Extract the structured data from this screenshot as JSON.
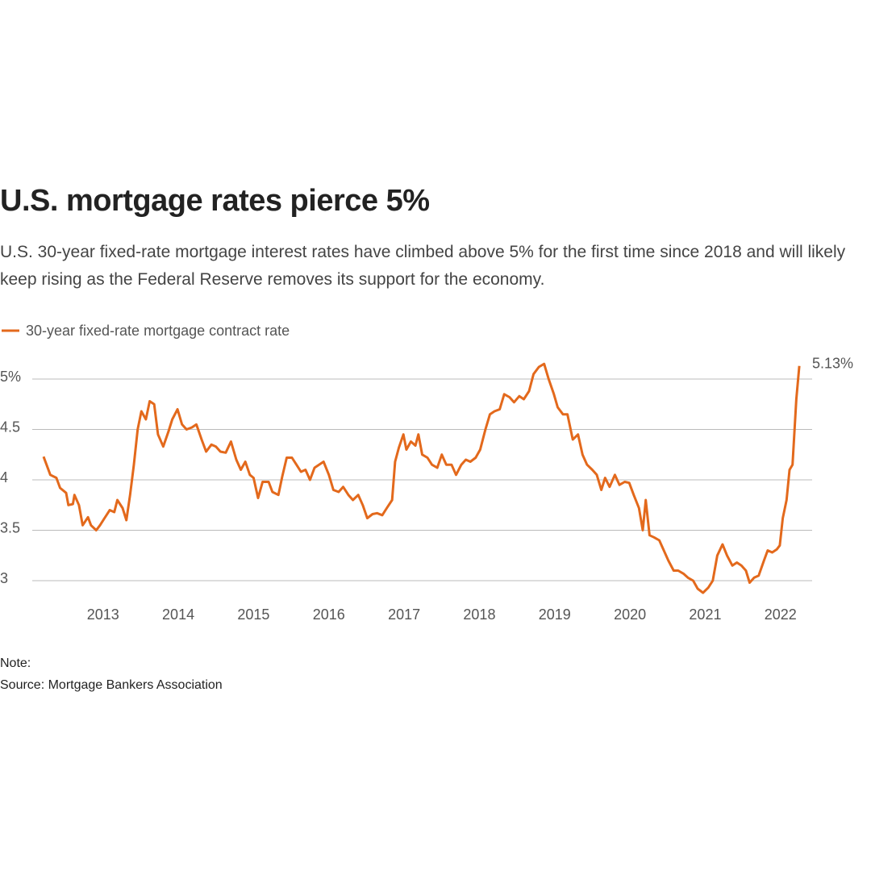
{
  "chart_data": {
    "type": "line",
    "title": "U.S. mortgage rates pierce 5%",
    "subtitle": "U.S. 30-year fixed-rate mortgage interest rates have climbed above 5% for the first time since 2018 and will likely keep rising as the Federal Reserve removes its support for the economy.",
    "note": "Note:",
    "source": "Source: Mortgage Bankers Association",
    "x": [
      2012.21,
      2012.3,
      2012.38,
      2012.43,
      2012.51,
      2012.54,
      2012.6,
      2012.62,
      2012.68,
      2012.73,
      2012.8,
      2012.84,
      2012.91,
      2012.96,
      2013.02,
      2013.09,
      2013.15,
      2013.19,
      2013.26,
      2013.31,
      2013.36,
      2013.41,
      2013.46,
      2013.51,
      2013.57,
      2013.62,
      2013.68,
      2013.73,
      2013.8,
      2013.87,
      2013.92,
      2013.99,
      2014.05,
      2014.11,
      2014.18,
      2014.24,
      2014.31,
      2014.37,
      2014.44,
      2014.5,
      2014.56,
      2014.63,
      2014.7,
      2014.77,
      2014.83,
      2014.89,
      2014.95,
      2015.0,
      2015.06,
      2015.12,
      2015.2,
      2015.25,
      2015.33,
      2015.38,
      2015.44,
      2015.51,
      2015.57,
      2015.63,
      2015.69,
      2015.75,
      2015.81,
      2015.87,
      2015.93,
      2016.0,
      2016.06,
      2016.13,
      2016.19,
      2016.26,
      2016.32,
      2016.39,
      2016.45,
      2016.51,
      2016.58,
      2016.64,
      2016.71,
      2016.77,
      2016.84,
      2016.88,
      2016.93,
      2016.99,
      2017.03,
      2017.09,
      2017.15,
      2017.19,
      2017.24,
      2017.31,
      2017.37,
      2017.44,
      2017.5,
      2017.56,
      2017.63,
      2017.69,
      2017.76,
      2017.82,
      2017.88,
      2017.95,
      2018.01,
      2018.08,
      2018.14,
      2018.2,
      2018.27,
      2018.33,
      2018.4,
      2018.46,
      2018.53,
      2018.59,
      2018.66,
      2018.72,
      2018.79,
      2018.86,
      2018.92,
      2018.99,
      2019.04,
      2019.11,
      2019.17,
      2019.24,
      2019.31,
      2019.37,
      2019.43,
      2019.5,
      2019.56,
      2019.62,
      2019.67,
      2019.73,
      2019.8,
      2019.86,
      2019.93,
      2019.99,
      2020.05,
      2020.12,
      2020.17,
      2020.21,
      2020.26,
      2020.32,
      2020.39,
      2020.45,
      2020.51,
      2020.58,
      2020.64,
      2020.71,
      2020.77,
      2020.84,
      2020.9,
      2020.97,
      2021.04,
      2021.1,
      2021.16,
      2021.23,
      2021.29,
      2021.36,
      2021.42,
      2021.48,
      2021.54,
      2021.59,
      2021.65,
      2021.71,
      2021.78,
      2021.83,
      2021.89,
      2021.95,
      2021.99,
      2022.03,
      2022.08,
      2022.12,
      2022.16,
      2022.21,
      2022.25
    ],
    "series": [
      {
        "name": "30-year fixed-rate mortgage contract rate",
        "color": "#e3691c",
        "values": [
          4.23,
          4.05,
          4.02,
          3.92,
          3.87,
          3.75,
          3.76,
          3.85,
          3.75,
          3.55,
          3.63,
          3.55,
          3.5,
          3.55,
          3.62,
          3.7,
          3.68,
          3.8,
          3.72,
          3.6,
          3.85,
          4.15,
          4.5,
          4.68,
          4.6,
          4.78,
          4.75,
          4.45,
          4.33,
          4.48,
          4.6,
          4.7,
          4.55,
          4.5,
          4.52,
          4.55,
          4.4,
          4.28,
          4.35,
          4.33,
          4.28,
          4.27,
          4.38,
          4.2,
          4.1,
          4.18,
          4.05,
          4.02,
          3.82,
          3.98,
          3.98,
          3.88,
          3.85,
          4.03,
          4.22,
          4.22,
          4.15,
          4.08,
          4.1,
          4.0,
          4.12,
          4.15,
          4.18,
          4.05,
          3.9,
          3.88,
          3.93,
          3.85,
          3.8,
          3.85,
          3.75,
          3.62,
          3.66,
          3.67,
          3.65,
          3.72,
          3.8,
          4.18,
          4.32,
          4.45,
          4.3,
          4.38,
          4.34,
          4.45,
          4.25,
          4.22,
          4.15,
          4.12,
          4.25,
          4.15,
          4.15,
          4.05,
          4.15,
          4.2,
          4.18,
          4.22,
          4.3,
          4.5,
          4.65,
          4.68,
          4.7,
          4.85,
          4.82,
          4.77,
          4.83,
          4.8,
          4.88,
          5.05,
          5.12,
          5.15,
          5.0,
          4.85,
          4.72,
          4.65,
          4.65,
          4.4,
          4.45,
          4.25,
          4.15,
          4.1,
          4.05,
          3.9,
          4.02,
          3.93,
          4.05,
          3.95,
          3.98,
          3.97,
          3.85,
          3.72,
          3.5,
          3.8,
          3.45,
          3.43,
          3.4,
          3.3,
          3.2,
          3.1,
          3.1,
          3.07,
          3.03,
          3.0,
          2.92,
          2.88,
          2.93,
          3.0,
          3.25,
          3.36,
          3.25,
          3.15,
          3.18,
          3.15,
          3.1,
          2.98,
          3.03,
          3.05,
          3.2,
          3.3,
          3.28,
          3.31,
          3.35,
          3.62,
          3.8,
          4.1,
          4.15,
          4.8,
          5.13
        ]
      }
    ],
    "annotation": {
      "value": 5.13,
      "label": "5.13%"
    },
    "xlim": [
      2012.06,
      2022.42
    ],
    "xticks": [
      2013,
      2014,
      2015,
      2016,
      2017,
      2018,
      2019,
      2020,
      2021,
      2022
    ],
    "ylim": [
      2.8,
      5.3
    ],
    "yticks": [
      3,
      3.5,
      4,
      4.5,
      {
        "value": 5,
        "label": "5%"
      }
    ],
    "grid": true
  }
}
